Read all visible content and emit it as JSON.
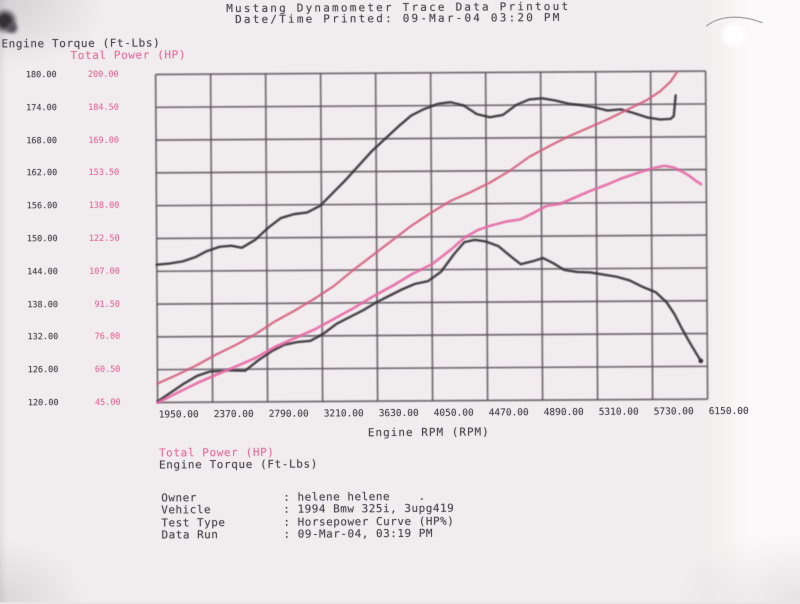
{
  "header": {
    "line1": "Mustang Dynamometer Trace Data Printout",
    "line2": "Date/Time Printed: 09-Mar-04 03:20 PM"
  },
  "axes": {
    "left_title": "Engine Torque (Ft-Lbs)",
    "power_title": "Total Power (HP)",
    "x_title": "Engine RPM (RPM)"
  },
  "legend": {
    "power": "Total Power (HP)",
    "torque": "Engine Torque (Ft-Lbs)"
  },
  "info": {
    "rows": [
      {
        "label": "Owner",
        "value": ": helene helene    ."
      },
      {
        "label": "Vehicle",
        "value": ": 1994 Bmw 325i, 3upg419"
      },
      {
        "label": "Test Type",
        "value": ": Horsepower Curve (HP%)"
      },
      {
        "label": "Data Run",
        "value": ": 09-Mar-04, 03:19 PM"
      }
    ]
  },
  "colors": {
    "paper": "#f1edee",
    "ink": "#4f4a51",
    "pink_text": "#e8709f",
    "grid": "#544e55",
    "torque_curve": "#3a353b",
    "power_run_a": "#d66181",
    "power_run_b": "#e66ca6"
  },
  "chart_data": {
    "type": "line",
    "title": "Mustang Dynamometer Trace Data Printout",
    "xlabel": "Engine RPM (RPM)",
    "grid": true,
    "x_range": [
      1950,
      6150
    ],
    "x_ticks": [
      1950,
      2370,
      2790,
      3210,
      3630,
      4050,
      4470,
      4890,
      5310,
      5730,
      6150
    ],
    "x_tick_labels": [
      "1950.00",
      "2370.00",
      "2790.00",
      "3210.00",
      "3630.00",
      "4050.00",
      "4470.00",
      "4890.00",
      "5310.00",
      "5730.00",
      "6150.00"
    ],
    "left_axis": {
      "label": "Engine Torque (Ft-Lbs)",
      "range": [
        120,
        180
      ],
      "tick_labels": [
        "180.00",
        "174.00",
        "168.00",
        "162.00",
        "156.00",
        "150.00",
        "144.00",
        "138.00",
        "132.00",
        "126.00",
        "120.00"
      ]
    },
    "right_axis": {
      "label": "Total Power (HP)",
      "range": [
        45,
        200
      ],
      "tick_labels": [
        "200.00",
        "184.50",
        "169.00",
        "153.50",
        "138.00",
        "122.50",
        "107.00",
        "91.50",
        "76.00",
        "60.50",
        "45.00"
      ]
    },
    "series": [
      {
        "name": "Engine Torque run A (Ft-Lbs)",
        "axis": "left",
        "color": "#3a353b",
        "width": 2.4,
        "points": [
          [
            1950,
            145.2
          ],
          [
            2050,
            145.4
          ],
          [
            2150,
            145.8
          ],
          [
            2250,
            146.6
          ],
          [
            2330,
            147.6
          ],
          [
            2430,
            148.4
          ],
          [
            2520,
            148.6
          ],
          [
            2600,
            148.2
          ],
          [
            2700,
            149.6
          ],
          [
            2800,
            151.8
          ],
          [
            2900,
            153.6
          ],
          [
            3000,
            154.3
          ],
          [
            3100,
            154.6
          ],
          [
            3200,
            155.8
          ],
          [
            3300,
            158.2
          ],
          [
            3400,
            160.6
          ],
          [
            3500,
            163.2
          ],
          [
            3600,
            165.8
          ],
          [
            3700,
            168.0
          ],
          [
            3800,
            170.2
          ],
          [
            3900,
            172.2
          ],
          [
            4000,
            173.4
          ],
          [
            4100,
            174.3
          ],
          [
            4200,
            174.6
          ],
          [
            4300,
            174.0
          ],
          [
            4400,
            172.4
          ],
          [
            4500,
            171.8
          ],
          [
            4600,
            172.2
          ],
          [
            4700,
            174.0
          ],
          [
            4800,
            175.0
          ],
          [
            4900,
            175.2
          ],
          [
            5000,
            174.8
          ],
          [
            5100,
            174.2
          ],
          [
            5200,
            173.9
          ],
          [
            5300,
            173.5
          ],
          [
            5400,
            172.9
          ],
          [
            5500,
            173.1
          ],
          [
            5600,
            172.4
          ],
          [
            5700,
            171.6
          ],
          [
            5800,
            171.2
          ],
          [
            5880,
            171.3
          ],
          [
            5905,
            171.8
          ],
          [
            5920,
            175.6
          ]
        ]
      },
      {
        "name": "Total Power run A (HP)",
        "axis": "right",
        "color": "#d66181",
        "width": 2.2,
        "points": [
          [
            1950,
            54
          ],
          [
            2100,
            58
          ],
          [
            2250,
            62.5
          ],
          [
            2400,
            67.5
          ],
          [
            2550,
            72
          ],
          [
            2700,
            77
          ],
          [
            2850,
            83
          ],
          [
            3000,
            88
          ],
          [
            3150,
            93.5
          ],
          [
            3300,
            99.5
          ],
          [
            3450,
            107
          ],
          [
            3600,
            114
          ],
          [
            3750,
            121
          ],
          [
            3900,
            128
          ],
          [
            4050,
            134
          ],
          [
            4200,
            139.5
          ],
          [
            4350,
            143.5
          ],
          [
            4500,
            148
          ],
          [
            4650,
            153.5
          ],
          [
            4800,
            160
          ],
          [
            4950,
            165
          ],
          [
            5100,
            169.5
          ],
          [
            5250,
            173.5
          ],
          [
            5400,
            177.5
          ],
          [
            5550,
            182
          ],
          [
            5700,
            186.5
          ],
          [
            5800,
            190.5
          ],
          [
            5880,
            195
          ],
          [
            5930,
            199.5
          ]
        ]
      },
      {
        "name": "Engine Torque run B (Ft-Lbs)",
        "axis": "left",
        "color": "#3a353b",
        "width": 2.4,
        "end_dot": true,
        "points": [
          [
            1950,
            120.2
          ],
          [
            2050,
            121.8
          ],
          [
            2150,
            123.4
          ],
          [
            2250,
            124.8
          ],
          [
            2350,
            125.6
          ],
          [
            2500,
            125.8
          ],
          [
            2620,
            125.7
          ],
          [
            2720,
            127.6
          ],
          [
            2820,
            129.2
          ],
          [
            2920,
            130.4
          ],
          [
            3020,
            130.9
          ],
          [
            3120,
            131.1
          ],
          [
            3220,
            132.4
          ],
          [
            3320,
            134.2
          ],
          [
            3420,
            135.4
          ],
          [
            3520,
            136.6
          ],
          [
            3620,
            138.0
          ],
          [
            3720,
            139.2
          ],
          [
            3820,
            140.4
          ],
          [
            3920,
            141.4
          ],
          [
            4020,
            141.9
          ],
          [
            4120,
            143.6
          ],
          [
            4220,
            146.8
          ],
          [
            4300,
            149.0
          ],
          [
            4380,
            149.4
          ],
          [
            4460,
            149.1
          ],
          [
            4560,
            148.2
          ],
          [
            4660,
            146.2
          ],
          [
            4730,
            144.9
          ],
          [
            4820,
            145.4
          ],
          [
            4900,
            146.0
          ],
          [
            4980,
            145.0
          ],
          [
            5060,
            143.8
          ],
          [
            5160,
            143.4
          ],
          [
            5260,
            143.3
          ],
          [
            5360,
            142.9
          ],
          [
            5460,
            142.5
          ],
          [
            5560,
            141.8
          ],
          [
            5660,
            140.6
          ],
          [
            5760,
            139.6
          ],
          [
            5840,
            137.8
          ],
          [
            5900,
            135.6
          ],
          [
            5960,
            132.8
          ],
          [
            6020,
            130.2
          ],
          [
            6070,
            128.2
          ],
          [
            6100,
            127.0
          ]
        ]
      },
      {
        "name": "Total Power run B (HP)",
        "axis": "right",
        "color": "#e66ca6",
        "width": 2.6,
        "points": [
          [
            1950,
            44.8
          ],
          [
            2100,
            49.5
          ],
          [
            2250,
            54
          ],
          [
            2400,
            58
          ],
          [
            2550,
            61.8
          ],
          [
            2700,
            65.8
          ],
          [
            2850,
            71
          ],
          [
            3000,
            75
          ],
          [
            3150,
            79
          ],
          [
            3300,
            84
          ],
          [
            3450,
            89
          ],
          [
            3600,
            94.5
          ],
          [
            3750,
            99.5
          ],
          [
            3900,
            105
          ],
          [
            4050,
            109.5
          ],
          [
            4200,
            116.5
          ],
          [
            4300,
            122
          ],
          [
            4400,
            125.5
          ],
          [
            4500,
            127.6
          ],
          [
            4620,
            129.5
          ],
          [
            4730,
            130.5
          ],
          [
            4830,
            133.5
          ],
          [
            4930,
            136.8
          ],
          [
            5030,
            137.6
          ],
          [
            5130,
            140.2
          ],
          [
            5250,
            143.4
          ],
          [
            5380,
            146.4
          ],
          [
            5500,
            149.5
          ],
          [
            5620,
            152
          ],
          [
            5740,
            154.2
          ],
          [
            5830,
            155.4
          ],
          [
            5900,
            154.6
          ],
          [
            5960,
            152.8
          ],
          [
            6020,
            150.6
          ],
          [
            6070,
            148.2
          ],
          [
            6110,
            146.6
          ]
        ]
      }
    ]
  }
}
